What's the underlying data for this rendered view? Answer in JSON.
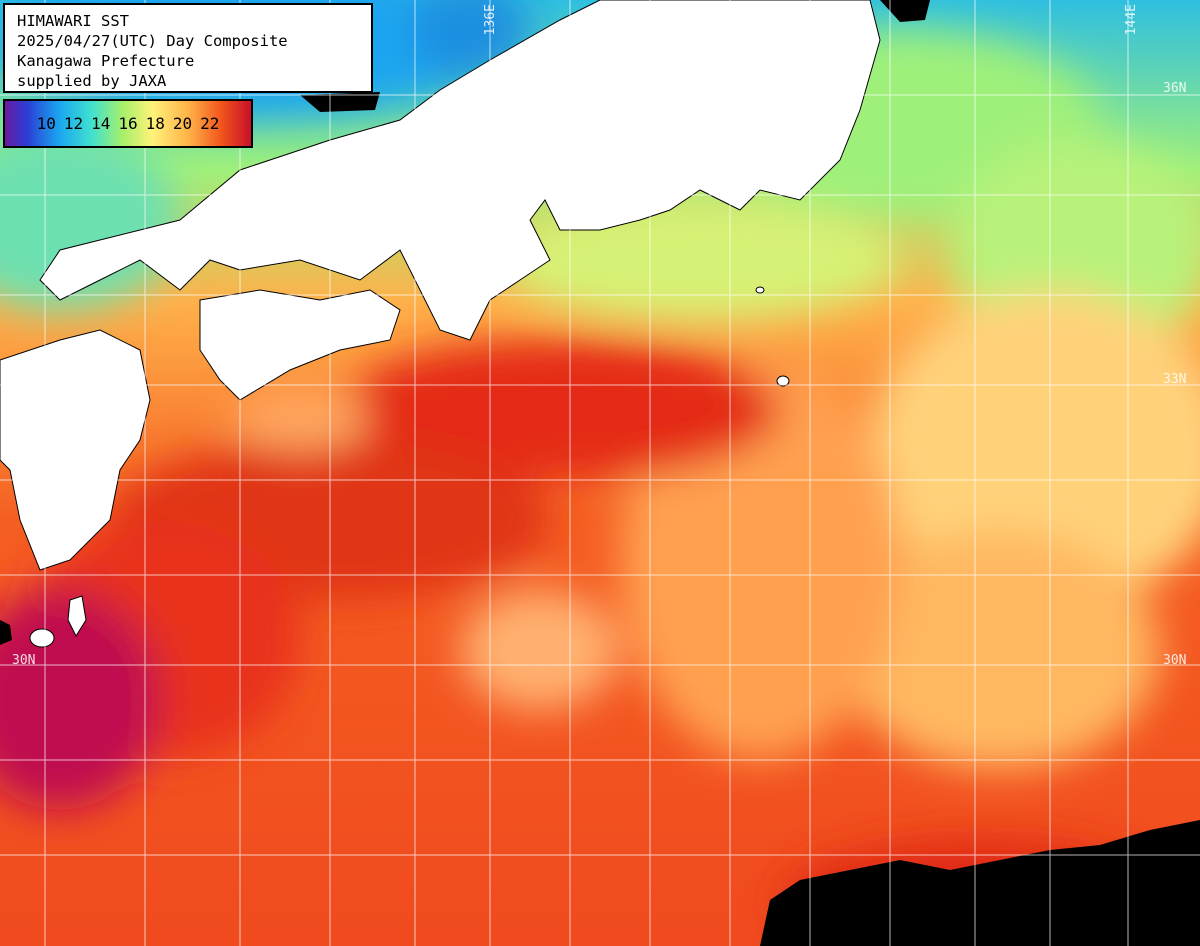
{
  "title": {
    "line1": "HIMAWARI SST",
    "line2": "2025/04/27(UTC) Day Composite",
    "line3": "Kanagawa Prefecture",
    "line4": "supplied by JAXA"
  },
  "legend": {
    "ticks": [
      "10",
      "12",
      "14",
      "16",
      "18",
      "20",
      "22"
    ]
  },
  "grid_labels": {
    "lon_136": "136E",
    "lon_144": "144E",
    "lat_36": "36N",
    "lat_33": "33N",
    "lat_30_left": "30N",
    "lat_30_right": "30N"
  },
  "colors": {
    "land": "#ffffff",
    "cloud": "#000000",
    "grid": "#ffffff",
    "sst_cold": "#2b3ed6",
    "sst_mid": "#a8f06a",
    "sst_warm": "#f2541c",
    "sst_hot": "#c8102a"
  }
}
